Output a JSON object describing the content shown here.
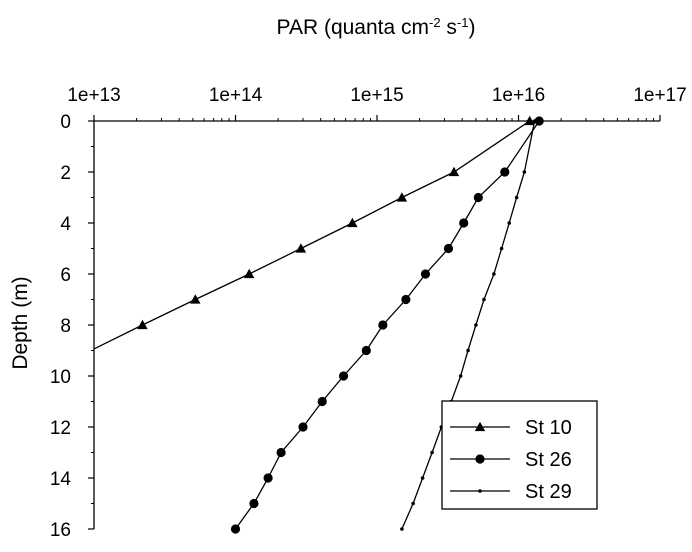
{
  "chart_data": {
    "type": "line",
    "title": "",
    "xlabel": {
      "main": "PAR (quanta cm",
      "sup1": "-2",
      "mid": " s",
      "sup2": "-1",
      "end": ")"
    },
    "ylabel": "Depth (m)",
    "x_scale": "log",
    "xlim": [
      10000000000000.0,
      1e+17
    ],
    "x_ticks": [
      {
        "value": 10000000000000.0,
        "label": "1e+13"
      },
      {
        "value": 100000000000000.0,
        "label": "1e+14"
      },
      {
        "value": 1000000000000000.0,
        "label": "1e+15"
      },
      {
        "value": 1e+16,
        "label": "1e+16"
      },
      {
        "value": 1e+17,
        "label": "1e+17"
      }
    ],
    "x_axis_position": "top",
    "ylim": [
      0,
      16
    ],
    "y_inverted": true,
    "y_ticks": [
      0,
      2,
      4,
      6,
      8,
      10,
      12,
      14,
      16
    ],
    "grid": false,
    "legend_position": "bottom-right",
    "series": [
      {
        "name": "St 10",
        "marker": "triangle",
        "points": [
          {
            "x": 1.2e+16,
            "y": 0
          },
          {
            "x": 3500000000000000.0,
            "y": 2
          },
          {
            "x": 1500000000000000.0,
            "y": 3
          },
          {
            "x": 670000000000000.0,
            "y": 4
          },
          {
            "x": 290000000000000.0,
            "y": 5
          },
          {
            "x": 125000000000000.0,
            "y": 6
          },
          {
            "x": 52000000000000.0,
            "y": 7
          },
          {
            "x": 22000000000000.0,
            "y": 8
          },
          {
            "x": 9500000000000.0,
            "y": 9
          }
        ]
      },
      {
        "name": "St 26",
        "marker": "circle",
        "points": [
          {
            "x": 1.4e+16,
            "y": 0
          },
          {
            "x": 8000000000000000.0,
            "y": 2
          },
          {
            "x": 5200000000000000.0,
            "y": 3
          },
          {
            "x": 4100000000000000.0,
            "y": 4
          },
          {
            "x": 3200000000000000.0,
            "y": 5
          },
          {
            "x": 2200000000000000.0,
            "y": 6
          },
          {
            "x": 1600000000000000.0,
            "y": 7
          },
          {
            "x": 1100000000000000.0,
            "y": 8
          },
          {
            "x": 840000000000000.0,
            "y": 9
          },
          {
            "x": 580000000000000.0,
            "y": 10
          },
          {
            "x": 410000000000000.0,
            "y": 11
          },
          {
            "x": 300000000000000.0,
            "y": 12
          },
          {
            "x": 210000000000000.0,
            "y": 13
          },
          {
            "x": 170000000000000.0,
            "y": 14
          },
          {
            "x": 135000000000000.0,
            "y": 15
          },
          {
            "x": 100000000000000.0,
            "y": 16
          }
        ]
      },
      {
        "name": "St 29",
        "marker": "dot",
        "points": [
          {
            "x": 1.3e+16,
            "y": 0
          },
          {
            "x": 1.1e+16,
            "y": 2
          },
          {
            "x": 9700000000000000.0,
            "y": 3
          },
          {
            "x": 8600000000000000.0,
            "y": 4
          },
          {
            "x": 7600000000000000.0,
            "y": 5
          },
          {
            "x": 6700000000000000.0,
            "y": 6
          },
          {
            "x": 5700000000000000.0,
            "y": 7
          },
          {
            "x": 5000000000000000.0,
            "y": 8
          },
          {
            "x": 4400000000000000.0,
            "y": 9
          },
          {
            "x": 3900000000000000.0,
            "y": 10
          },
          {
            "x": 3350000000000000.0,
            "y": 11
          },
          {
            "x": 2850000000000000.0,
            "y": 12
          },
          {
            "x": 2450000000000000.0,
            "y": 13
          },
          {
            "x": 2100000000000000.0,
            "y": 14
          },
          {
            "x": 1800000000000000.0,
            "y": 15
          },
          {
            "x": 1500000000000000.0,
            "y": 16
          }
        ]
      }
    ]
  }
}
